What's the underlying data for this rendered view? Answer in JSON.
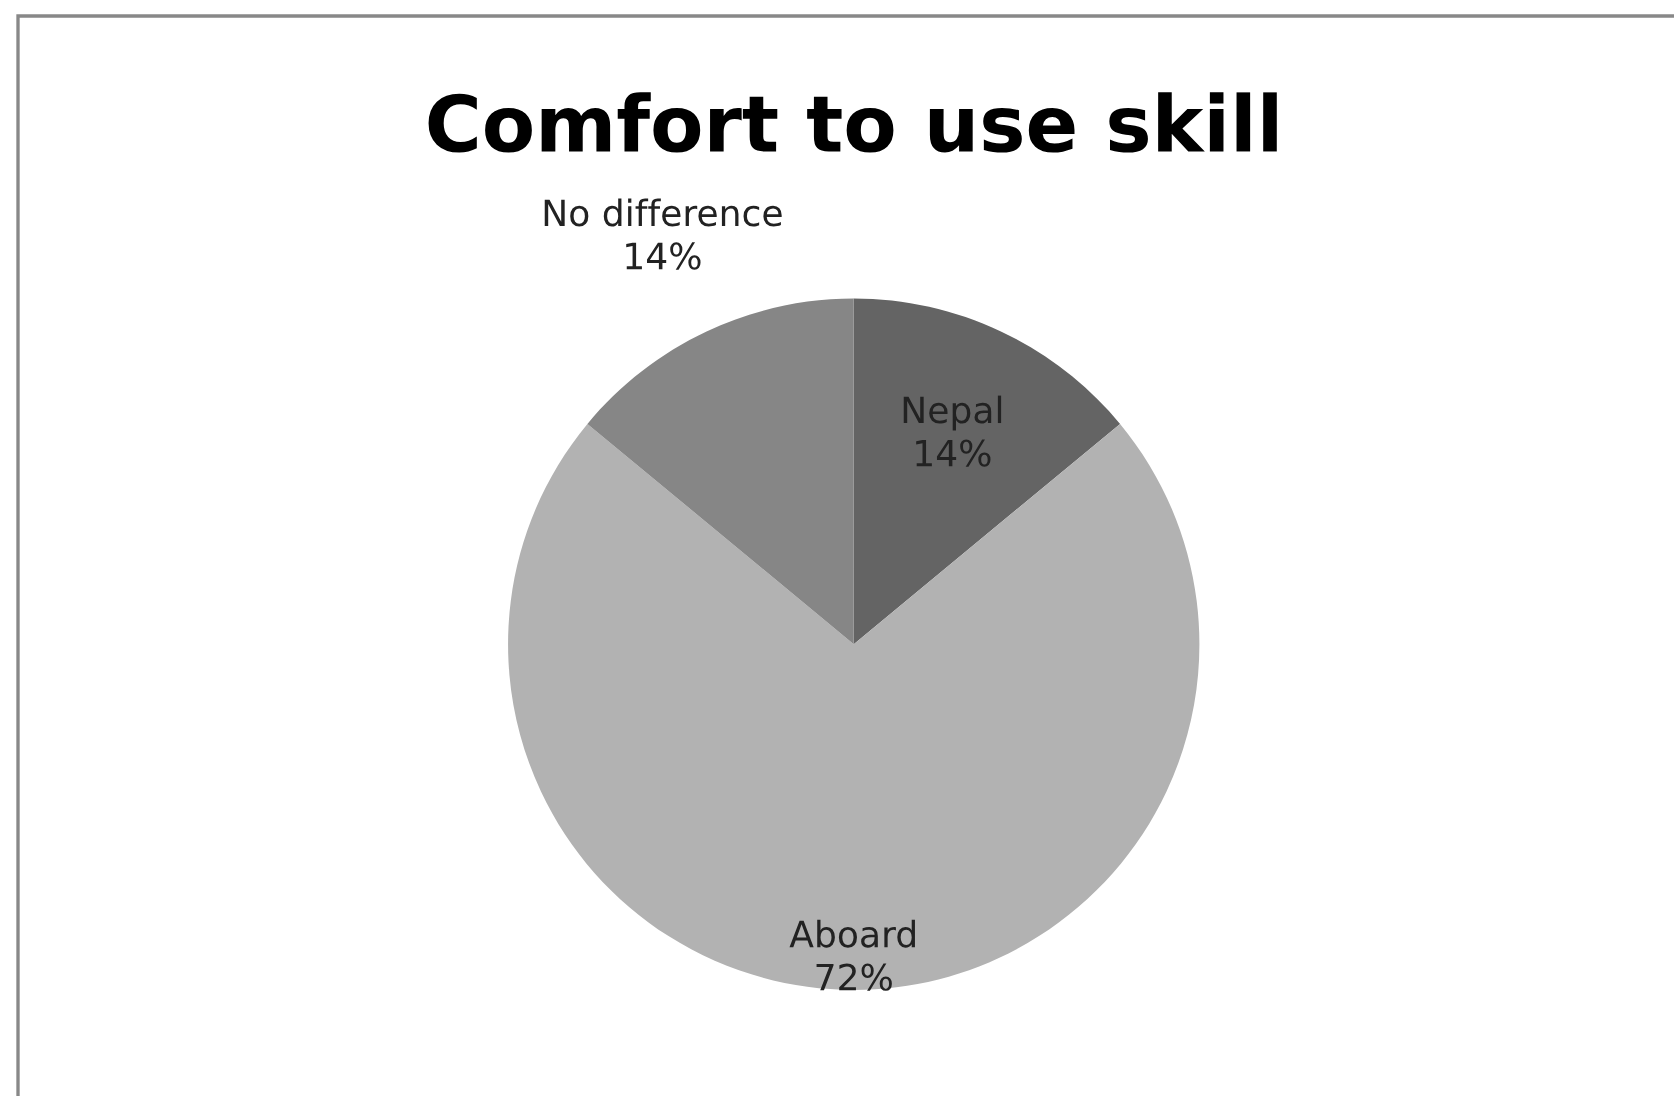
{
  "chart_data": {
    "type": "pie",
    "title": "Comfort to use skill",
    "categories": [
      "Nepal",
      "Aboard",
      "No difference"
    ],
    "values": [
      14,
      72,
      14
    ],
    "value_labels": [
      "14%",
      "72%",
      "14%"
    ],
    "colors": [
      "#646464",
      "#b2b2b2",
      "#868686"
    ],
    "legend": false
  }
}
